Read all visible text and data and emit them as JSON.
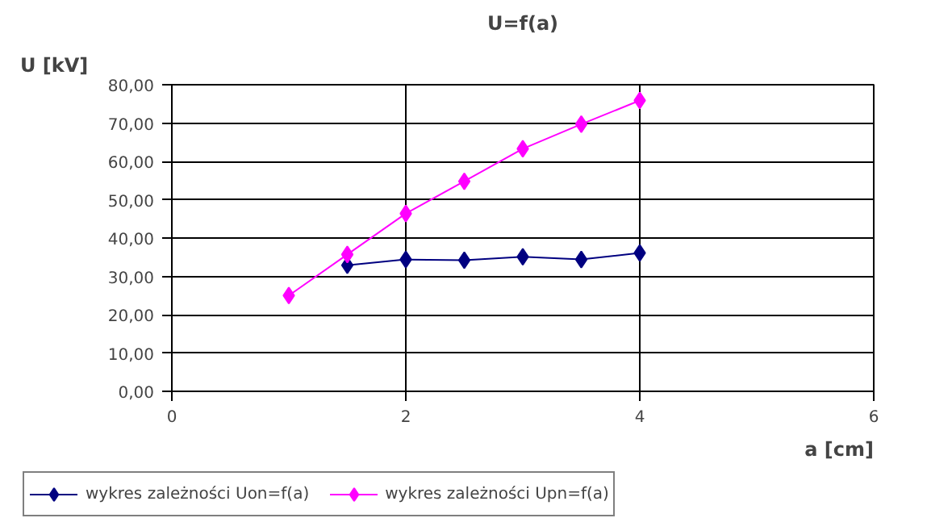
{
  "chart_data": {
    "type": "line",
    "title": "U=f(a)",
    "xlabel": "a [cm]",
    "ylabel": "U [kV]",
    "xlim": [
      0,
      6
    ],
    "xticks": [
      0,
      2,
      4,
      6
    ],
    "ylim": [
      0,
      80
    ],
    "yticks": [
      {
        "value": 0,
        "label": "0,00"
      },
      {
        "value": 10,
        "label": "10,00"
      },
      {
        "value": 20,
        "label": "20,00"
      },
      {
        "value": 30,
        "label": "30,00"
      },
      {
        "value": 40,
        "label": "40,00"
      },
      {
        "value": 50,
        "label": "50,00"
      },
      {
        "value": 60,
        "label": "60,00"
      },
      {
        "value": 70,
        "label": "70,00"
      },
      {
        "value": 80,
        "label": "80,00"
      }
    ],
    "series": [
      {
        "name": "wykres zależności Uon=f(a)",
        "color": "#000080",
        "x": [
          1.5,
          2,
          2.5,
          3,
          3.5,
          4
        ],
        "values": [
          32.9,
          34.4,
          34.2,
          35.1,
          34.4,
          36.1
        ]
      },
      {
        "name": "wykres zależności Upn=f(a)",
        "color": "#ff00ff",
        "x": [
          1,
          1.5,
          2,
          2.5,
          3,
          3.5,
          4
        ],
        "values": [
          25.0,
          35.7,
          46.4,
          54.8,
          63.3,
          69.7,
          75.9
        ]
      }
    ],
    "grid": true,
    "legend": "bottom left",
    "marker": "diamond",
    "line_style": "solid"
  }
}
